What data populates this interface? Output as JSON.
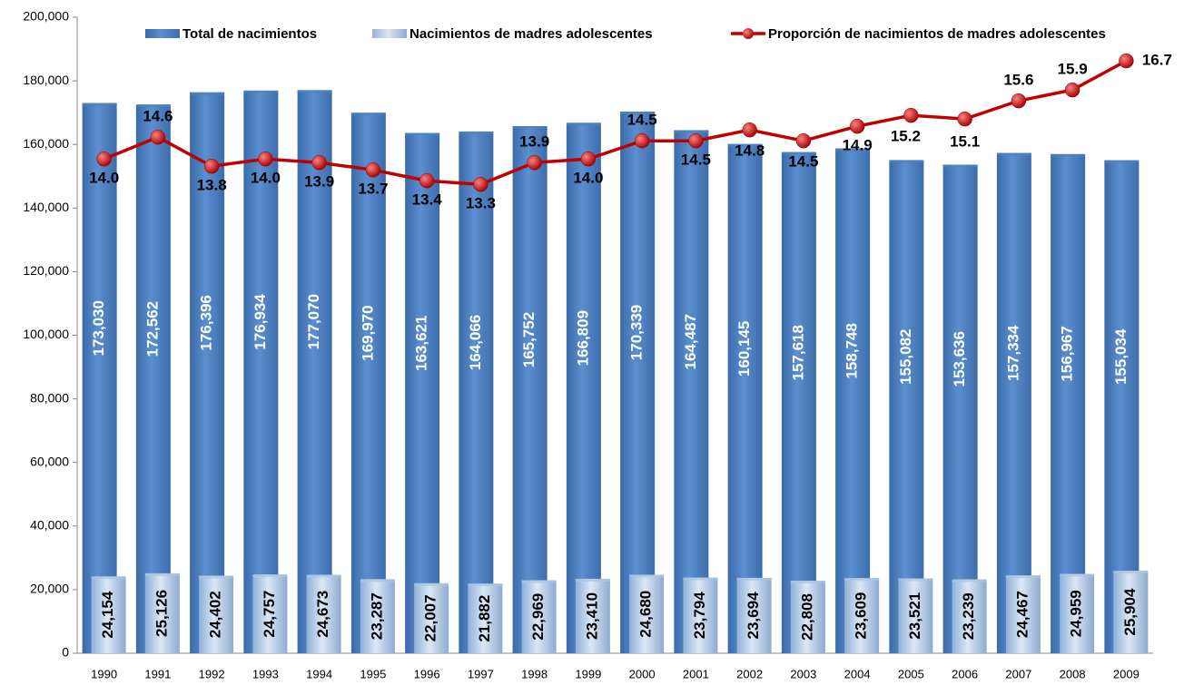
{
  "chart_data": {
    "type": "bar-line",
    "categories": [
      "1990",
      "1991",
      "1992",
      "1993",
      "1994",
      "1995",
      "1996",
      "1997",
      "1998",
      "1999",
      "2000",
      "2001",
      "2002",
      "2003",
      "2004",
      "2005",
      "2006",
      "2007",
      "2008",
      "2009"
    ],
    "series": [
      {
        "name": "Total de nacimientos",
        "color": "#4f81bd",
        "type": "bar",
        "values": [
          173030,
          172562,
          176396,
          176934,
          177070,
          169970,
          163621,
          164066,
          165752,
          166809,
          170339,
          164487,
          160145,
          157618,
          158748,
          155082,
          153636,
          157334,
          156967,
          155034
        ],
        "value_labels": [
          "173,030",
          "172,562",
          "176,396",
          "176,934",
          "177,070",
          "169,970",
          "163,621",
          "164,066",
          "165,752",
          "166,809",
          "170,339",
          "164,487",
          "160,145",
          "157,618",
          "158,748",
          "155,082",
          "153,636",
          "157,334",
          "156,967",
          "155,034"
        ]
      },
      {
        "name": "Nacimientos de madres adolescentes",
        "color": "#a9c4e4",
        "type": "bar",
        "values": [
          24154,
          25126,
          24402,
          24757,
          24673,
          23287,
          22007,
          21882,
          22969,
          23410,
          24680,
          23794,
          23694,
          22808,
          23609,
          23521,
          23239,
          24467,
          24959,
          25904
        ],
        "value_labels": [
          "24,154",
          "25,126",
          "24,402",
          "24,757",
          "24,673",
          "23,287",
          "22,007",
          "21,882",
          "22,969",
          "23,410",
          "24,680",
          "23,794",
          "23,694",
          "22,808",
          "23,609",
          "23,521",
          "23,239",
          "24,467",
          "24,959",
          "25,904"
        ]
      },
      {
        "name": "Proporción de nacimientos de madres adolescentes",
        "color": "#c00000",
        "type": "line",
        "axis": "y2",
        "values": [
          14.0,
          14.6,
          13.8,
          14.0,
          13.9,
          13.7,
          13.4,
          13.3,
          13.9,
          14.0,
          14.5,
          14.5,
          14.8,
          14.5,
          14.9,
          15.2,
          15.1,
          15.6,
          15.9,
          16.7
        ],
        "value_labels": [
          "14.0",
          "14.6",
          "13.8",
          "14.0",
          "13.9",
          "13.7",
          "13.4",
          "13.3",
          "13.9",
          "14.0",
          "14.5",
          "14.5",
          "14.8",
          "14.5",
          "14.9",
          "15.2",
          "15.1",
          "15.6",
          "15.9",
          "16.7"
        ]
      }
    ],
    "ylim": [
      0,
      200000
    ],
    "yticks": [
      {
        "value": 0,
        "label": "0"
      },
      {
        "value": 20000,
        "label": "20,000"
      },
      {
        "value": 40000,
        "label": "40,000"
      },
      {
        "value": 60000,
        "label": "60,000"
      },
      {
        "value": 80000,
        "label": "80,000"
      },
      {
        "value": 100000,
        "label": "100,000"
      },
      {
        "value": 120000,
        "label": "120,000"
      },
      {
        "value": 140000,
        "label": "140,000"
      },
      {
        "value": 160000,
        "label": "160,000"
      },
      {
        "value": 180000,
        "label": "180,000"
      },
      {
        "value": 200000,
        "label": "200,000"
      }
    ],
    "y2lim": [
      0.4,
      17.9
    ],
    "legend": "top"
  }
}
